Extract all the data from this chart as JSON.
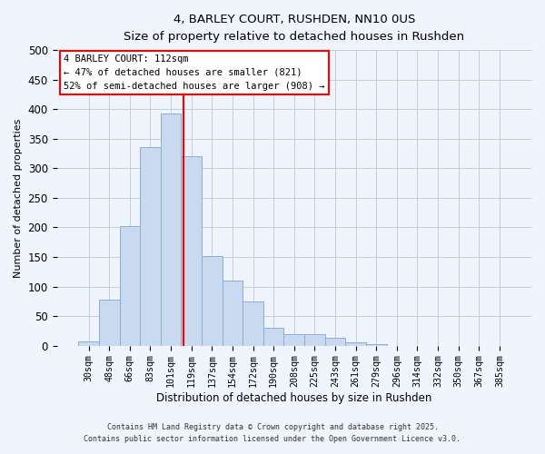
{
  "title": "4, BARLEY COURT, RUSHDEN, NN10 0US",
  "subtitle": "Size of property relative to detached houses in Rushden",
  "xlabel": "Distribution of detached houses by size in Rushden",
  "ylabel": "Number of detached properties",
  "bar_labels": [
    "30sqm",
    "48sqm",
    "66sqm",
    "83sqm",
    "101sqm",
    "119sqm",
    "137sqm",
    "154sqm",
    "172sqm",
    "190sqm",
    "208sqm",
    "225sqm",
    "243sqm",
    "261sqm",
    "279sqm",
    "296sqm",
    "314sqm",
    "332sqm",
    "350sqm",
    "367sqm",
    "385sqm"
  ],
  "bar_values": [
    8,
    78,
    202,
    336,
    392,
    321,
    151,
    110,
    75,
    30,
    20,
    20,
    13,
    5,
    2,
    0,
    0,
    0,
    0,
    0,
    0
  ],
  "bar_color": "#c9d9f0",
  "bar_edgecolor": "#8aafd4",
  "vline_x": 4.62,
  "vline_color": "red",
  "annotation_line1": "4 BARLEY COURT: 112sqm",
  "annotation_line2": "← 47% of detached houses are smaller (821)",
  "annotation_line3": "52% of semi-detached houses are larger (908) →",
  "ylim": [
    0,
    500
  ],
  "yticks": [
    0,
    50,
    100,
    150,
    200,
    250,
    300,
    350,
    400,
    450,
    500
  ],
  "footnote1": "Contains HM Land Registry data © Crown copyright and database right 2025.",
  "footnote2": "Contains public sector information licensed under the Open Government Licence v3.0.",
  "background_color": "#f0f4fc",
  "grid_color": "#b8c8e0"
}
